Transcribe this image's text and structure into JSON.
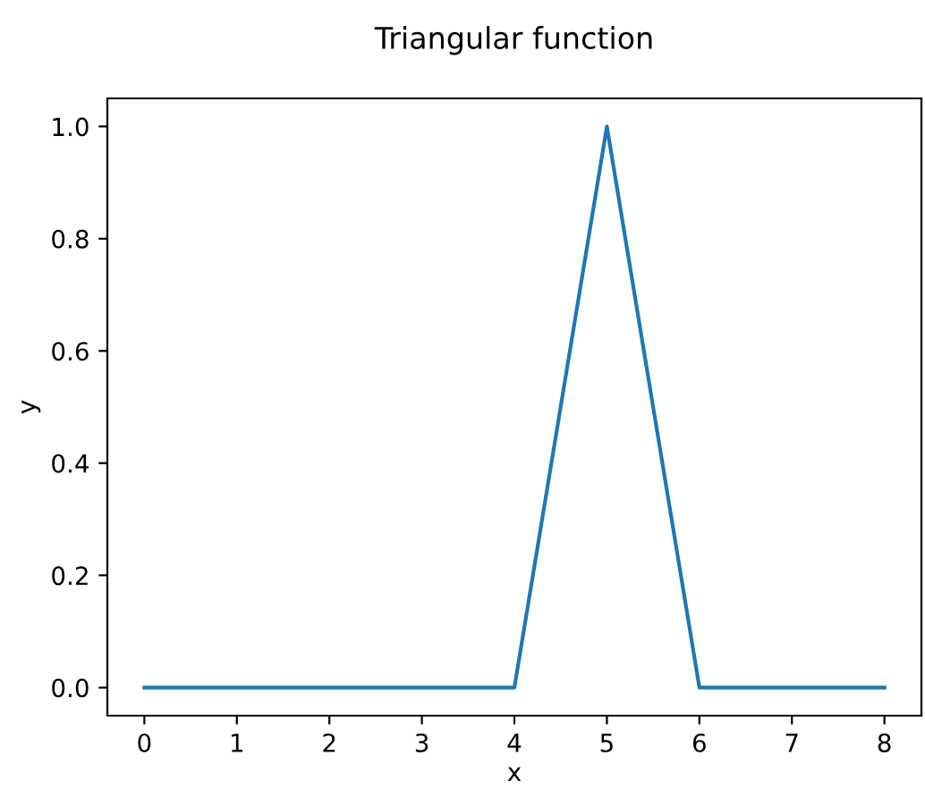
{
  "chart_data": {
    "type": "line",
    "title": "Triangular function",
    "xlabel": "x",
    "ylabel": "y",
    "series": [
      {
        "color": "#1f77b4",
        "x": [
          0,
          4,
          5,
          6,
          8
        ],
        "values": [
          0,
          0,
          1,
          0,
          0
        ]
      }
    ],
    "xlim": [
      -0.4,
      8.4
    ],
    "ylim": [
      -0.05,
      1.05
    ],
    "xticks": [
      0,
      1,
      2,
      3,
      4,
      5,
      6,
      7,
      8
    ],
    "yticks": [
      {
        "value": 0,
        "label": "0.0"
      },
      {
        "value": 0.2,
        "label": "0.2"
      },
      {
        "value": 0.4,
        "label": "0.4"
      },
      {
        "value": 0.6,
        "label": "0.6"
      },
      {
        "value": 0.8,
        "label": "0.8"
      },
      {
        "value": 1,
        "label": "1.0"
      }
    ],
    "grid": false,
    "legend": false,
    "marker": "none",
    "line_style": "solid"
  }
}
